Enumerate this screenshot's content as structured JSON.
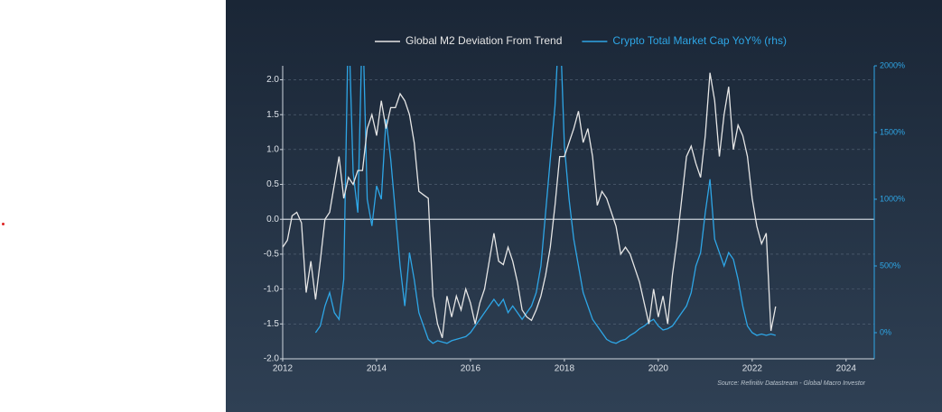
{
  "chart_data": {
    "type": "line",
    "source": "Source: Refinitiv Datastream - Global Macro Investor",
    "x": [
      2012.0,
      2012.1,
      2012.2,
      2012.3,
      2012.4,
      2012.5,
      2012.6,
      2012.7,
      2012.8,
      2012.9,
      2013.0,
      2013.1,
      2013.2,
      2013.3,
      2013.4,
      2013.5,
      2013.6,
      2013.7,
      2013.8,
      2013.9,
      2014.0,
      2014.1,
      2014.2,
      2014.3,
      2014.4,
      2014.5,
      2014.6,
      2014.7,
      2014.8,
      2014.9,
      2015.0,
      2015.1,
      2015.2,
      2015.3,
      2015.4,
      2015.5,
      2015.6,
      2015.7,
      2015.8,
      2015.9,
      2016.0,
      2016.1,
      2016.2,
      2016.3,
      2016.4,
      2016.5,
      2016.6,
      2016.7,
      2016.8,
      2016.9,
      2017.0,
      2017.1,
      2017.2,
      2017.3,
      2017.4,
      2017.5,
      2017.6,
      2017.7,
      2017.8,
      2017.9,
      2018.0,
      2018.1,
      2018.2,
      2018.3,
      2018.4,
      2018.5,
      2018.6,
      2018.7,
      2018.8,
      2018.9,
      2019.0,
      2019.1,
      2019.2,
      2019.3,
      2019.4,
      2019.5,
      2019.6,
      2019.7,
      2019.8,
      2019.9,
      2020.0,
      2020.1,
      2020.2,
      2020.3,
      2020.4,
      2020.5,
      2020.6,
      2020.7,
      2020.8,
      2020.9,
      2021.0,
      2021.1,
      2021.2,
      2021.3,
      2021.4,
      2021.5,
      2021.6,
      2021.7,
      2021.8,
      2021.9,
      2022.0,
      2022.1,
      2022.2,
      2022.3,
      2022.4,
      2022.5
    ],
    "series": [
      {
        "name": "Global M2 Deviation From Trend",
        "color": "#e6e6e6",
        "values": [
          -0.4,
          -0.3,
          0.05,
          0.1,
          -0.05,
          -1.05,
          -0.6,
          -1.15,
          -0.6,
          0.0,
          0.1,
          0.5,
          0.9,
          0.3,
          0.6,
          0.5,
          0.7,
          0.7,
          1.3,
          1.5,
          1.2,
          1.7,
          1.3,
          1.6,
          1.6,
          1.8,
          1.7,
          1.5,
          1.1,
          0.4,
          0.35,
          0.3,
          -1.1,
          -1.5,
          -1.7,
          -1.1,
          -1.4,
          -1.1,
          -1.3,
          -1.0,
          -1.2,
          -1.5,
          -1.2,
          -1.0,
          -0.6,
          -0.2,
          -0.6,
          -0.65,
          -0.4,
          -0.6,
          -0.9,
          -1.3,
          -1.4,
          -1.45,
          -1.3,
          -1.1,
          -0.8,
          -0.4,
          0.2,
          0.9,
          0.9,
          1.1,
          1.3,
          1.55,
          1.1,
          1.3,
          0.9,
          0.2,
          0.4,
          0.3,
          0.1,
          -0.1,
          -0.5,
          -0.4,
          -0.5,
          -0.7,
          -0.9,
          -1.2,
          -1.5,
          -1.0,
          -1.4,
          -1.1,
          -1.5,
          -0.8,
          -0.3,
          0.3,
          0.9,
          1.05,
          0.8,
          0.6,
          1.2,
          2.1,
          1.7,
          0.9,
          1.5,
          1.9,
          1.0,
          1.35,
          1.2,
          0.9,
          0.3,
          -0.1,
          -0.35,
          -0.2,
          -1.6,
          -1.25
        ]
      },
      {
        "name": "Crypto Total Market Cap YoY% (rhs)",
        "color": "#2ea6e6",
        "axis": "y2",
        "values": [
          null,
          null,
          null,
          null,
          null,
          null,
          null,
          0,
          50,
          200,
          300,
          150,
          100,
          400,
          2400,
          1200,
          900,
          2400,
          1000,
          800,
          1100,
          1000,
          1600,
          1300,
          900,
          500,
          200,
          600,
          400,
          150,
          50,
          -50,
          -80,
          -60,
          -70,
          -80,
          -60,
          -50,
          -40,
          -30,
          0,
          50,
          100,
          150,
          200,
          250,
          200,
          250,
          150,
          200,
          150,
          100,
          150,
          200,
          300,
          500,
          900,
          1300,
          1700,
          2400,
          1400,
          1000,
          700,
          500,
          300,
          200,
          100,
          50,
          0,
          -50,
          -70,
          -80,
          -60,
          -50,
          -20,
          0,
          30,
          50,
          80,
          100,
          50,
          20,
          30,
          50,
          100,
          150,
          200,
          300,
          500,
          600,
          900,
          1150,
          700,
          600,
          500,
          600,
          550,
          400,
          200,
          50,
          0,
          -20,
          -10,
          -20,
          -10,
          -20
        ]
      }
    ],
    "xlim": [
      2012,
      2024.6
    ],
    "xticks": [
      2012,
      2014,
      2016,
      2018,
      2020,
      2022,
      2024
    ],
    "ylim": [
      -2.0,
      2.2
    ],
    "yticks": [
      {
        "value": -2.0,
        "label": "-2.0"
      },
      -1.5,
      {
        "value": -1.0,
        "label": "-1.0"
      },
      -0.5,
      {
        "value": 0.0,
        "label": "0.0"
      },
      0.5,
      {
        "value": 1.0,
        "label": "1.0"
      },
      1.5,
      {
        "value": 2.0,
        "label": "2.0"
      }
    ],
    "y2lim": [
      -196,
      2000
    ],
    "y2ticks": [
      {
        "value": 0,
        "label": "0%"
      },
      {
        "value": 500,
        "label": "500%"
      },
      {
        "value": 1000,
        "label": "1000%"
      },
      {
        "value": 1500,
        "label": "1500%"
      },
      {
        "value": 2000,
        "label": "2000%"
      }
    ],
    "grid": true,
    "legend": "top"
  }
}
